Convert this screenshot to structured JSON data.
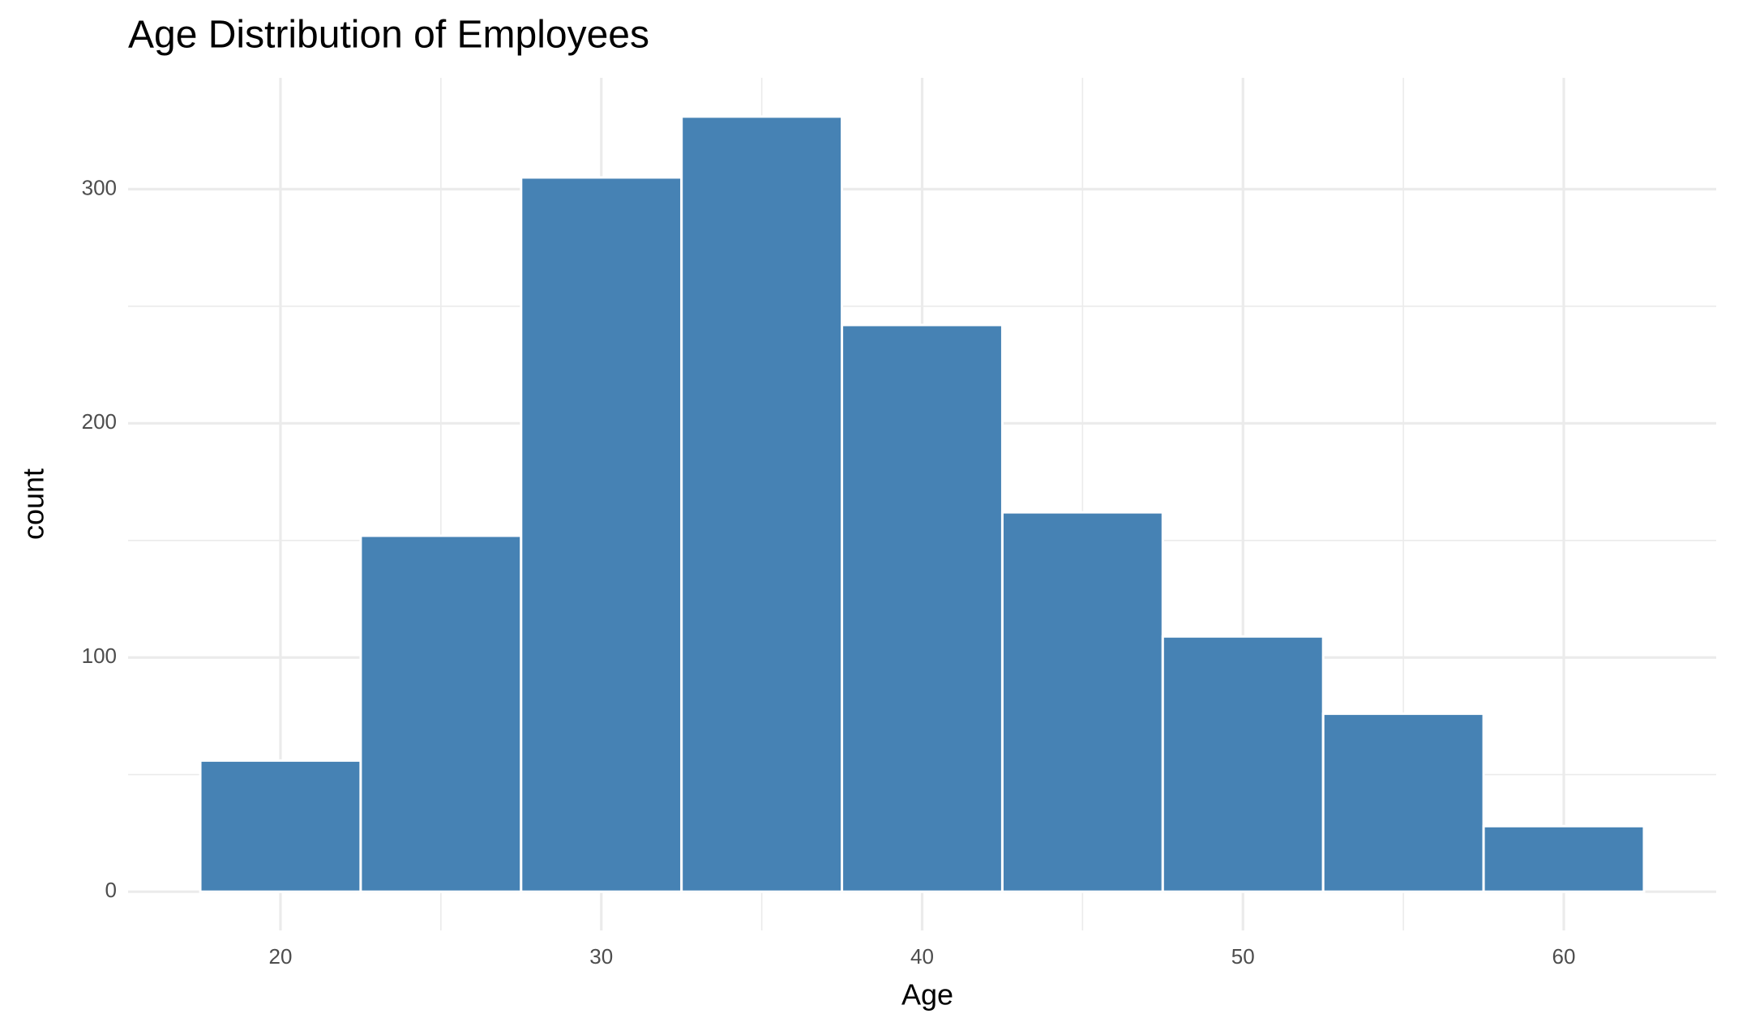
{
  "chart_data": {
    "type": "histogram",
    "title": "Age Distribution of Employees",
    "x_label": "Age",
    "y_label": "count",
    "bins": [
      17.5,
      22.5,
      27.5,
      32.5,
      37.5,
      42.5,
      47.5,
      52.5,
      57.5,
      62.5
    ],
    "values": [
      56,
      152,
      305,
      331,
      242,
      162,
      109,
      76,
      28
    ],
    "color": "#4682b4",
    "xlim": [
      15.25,
      64.75
    ],
    "xticks": [
      20,
      30,
      40,
      50,
      60
    ],
    "minor_xticks": [
      25,
      35,
      45,
      55
    ],
    "ylim": [
      -16.55,
      347.55
    ],
    "yticks": [
      0,
      100,
      200,
      300
    ],
    "minor_yticks": [
      50,
      150,
      250
    ],
    "grid": true
  }
}
